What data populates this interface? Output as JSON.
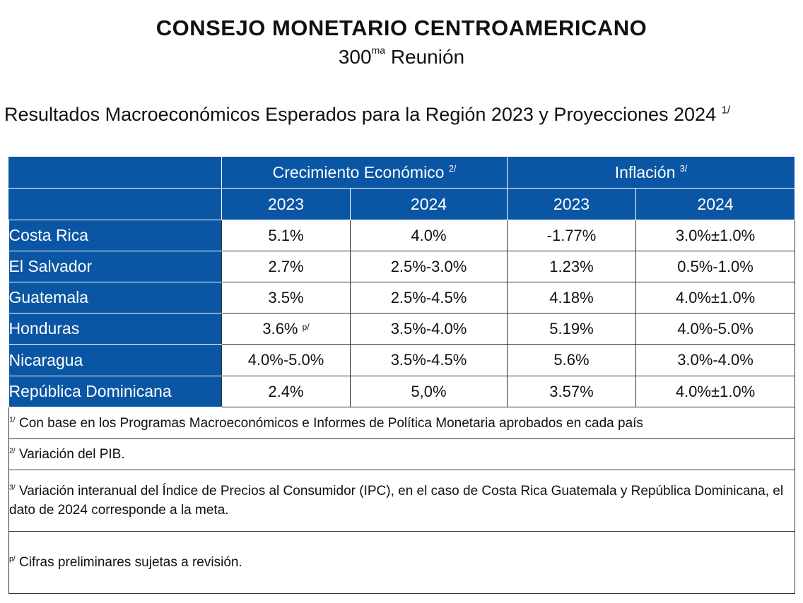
{
  "header": {
    "organization": "CONSEJO MONETARIO CENTROAMERICANO",
    "meeting_number": "300",
    "meeting_ordinal_suffix": "ma",
    "meeting_word": "Reunión"
  },
  "report_title": {
    "text": "Resultados Macroeconómicos Esperados para la Región 2023 y Proyecciones 2024",
    "note_mark": "1/"
  },
  "table": {
    "groups": {
      "growth": {
        "label": "Crecimiento Económico",
        "note_mark": "2/"
      },
      "inflation": {
        "label": "Inflación",
        "note_mark": "3/"
      }
    },
    "years": [
      "2023",
      "2024",
      "2023",
      "2024"
    ],
    "rows": [
      {
        "country": "Costa Rica",
        "growth_2023": "5.1%",
        "growth_2023_mark": "",
        "growth_2024": "4.0%",
        "inflation_2023": "-1.77%",
        "inflation_2024": "3.0%±1.0%"
      },
      {
        "country": "El Salvador",
        "growth_2023": "2.7%",
        "growth_2023_mark": "",
        "growth_2024": "2.5%-3.0%",
        "inflation_2023": "1.23%",
        "inflation_2024": "0.5%-1.0%"
      },
      {
        "country": "Guatemala",
        "growth_2023": "3.5%",
        "growth_2023_mark": "",
        "growth_2024": "2.5%-4.5%",
        "inflation_2023": "4.18%",
        "inflation_2024": "4.0%±1.0%"
      },
      {
        "country": "Honduras",
        "growth_2023": "3.6%",
        "growth_2023_mark": "p/",
        "growth_2024": "3.5%-4.0%",
        "inflation_2023": "5.19%",
        "inflation_2024": "4.0%-5.0%"
      },
      {
        "country": "Nicaragua",
        "growth_2023": "4.0%-5.0%",
        "growth_2023_mark": "",
        "growth_2024": "3.5%-4.5%",
        "inflation_2023": "5.6%",
        "inflation_2024": "3.0%-4.0%"
      },
      {
        "country": "República Dominicana",
        "growth_2023": "2.4%",
        "growth_2023_mark": "",
        "growth_2024": "5,0%",
        "inflation_2023": "3.57%",
        "inflation_2024": "4.0%±1.0%"
      }
    ]
  },
  "footnotes": [
    {
      "mark": "1/",
      "text": "Con base en los Programas Macroeconómicos e Informes de Política Monetaria aprobados en cada país"
    },
    {
      "mark": "2/",
      "text": "Variación del PIB."
    },
    {
      "mark": "3/",
      "text": "Variación interanual del Índice de Precios al Consumidor (IPC), en el caso de Costa Rica Guatemala y República Dominicana, el dato de 2024 corresponde a la meta."
    },
    {
      "mark": "p/",
      "text": "Cifras preliminares sujetas a revisión."
    }
  ],
  "colors": {
    "header_blue": "#0b56a4",
    "header_text": "#ffffff",
    "body_text": "#111111"
  }
}
